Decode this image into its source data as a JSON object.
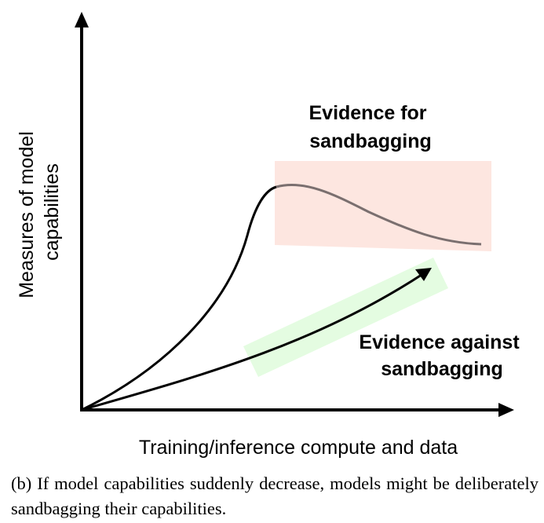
{
  "figure": {
    "y_axis_label": [
      "Measures of model",
      "capabilities"
    ],
    "x_axis_label": "Training/inference compute and data",
    "evidence_for": [
      "Evidence for",
      "sandbagging"
    ],
    "evidence_against": [
      "Evidence against",
      "sandbagging"
    ],
    "colors": {
      "axis": "#000000",
      "curve": "#000000",
      "decline_curve": "#7a6f6f",
      "evidence_for_region": "#fde6e0",
      "evidence_against_band": "#e4fce1"
    }
  },
  "caption": "(b) If model capabilities suddenly decrease, models might be deliberately sandbagging their capabilities."
}
